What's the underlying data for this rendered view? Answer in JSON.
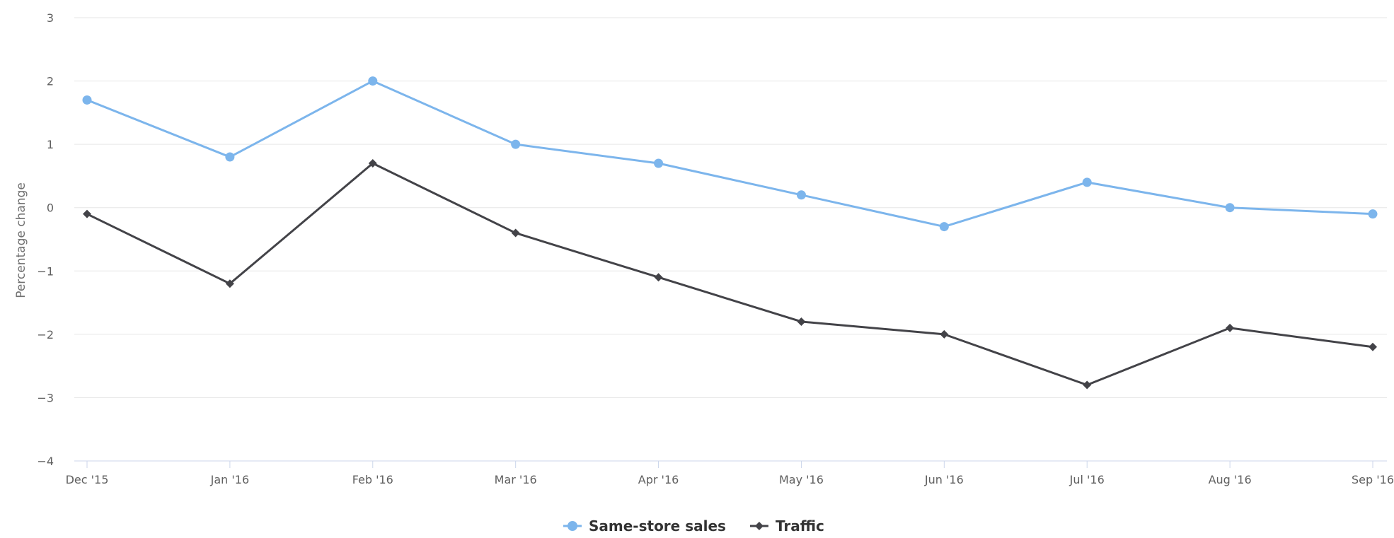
{
  "chart_data": {
    "type": "line",
    "title": "",
    "xlabel": "",
    "ylabel": "Percentage change",
    "categories": [
      "Dec '15",
      "Jan '16",
      "Feb '16",
      "Mar '16",
      "Apr '16",
      "May '16",
      "Jun '16",
      "Jul '16",
      "Aug '16",
      "Sep '16"
    ],
    "ylim": [
      -4,
      3
    ],
    "yticks": [
      3,
      2,
      1,
      0,
      -1,
      -2,
      -3,
      -4
    ],
    "ytick_labels": [
      "3",
      "2",
      "1",
      "0",
      "−1",
      "−2",
      "−3",
      "−4"
    ],
    "grid": true,
    "legend_position": "bottom-center",
    "series": [
      {
        "name": "Same-store sales",
        "color": "#7cb5ec",
        "marker": "circle",
        "values": [
          1.7,
          0.8,
          2.0,
          1.0,
          0.7,
          0.2,
          -0.3,
          0.4,
          0.0,
          -0.1
        ]
      },
      {
        "name": "Traffic",
        "color": "#434348",
        "marker": "diamond",
        "values": [
          -0.1,
          -1.2,
          0.7,
          -0.4,
          -1.1,
          -1.8,
          -2.0,
          -2.8,
          -1.9,
          -2.2
        ]
      }
    ]
  }
}
